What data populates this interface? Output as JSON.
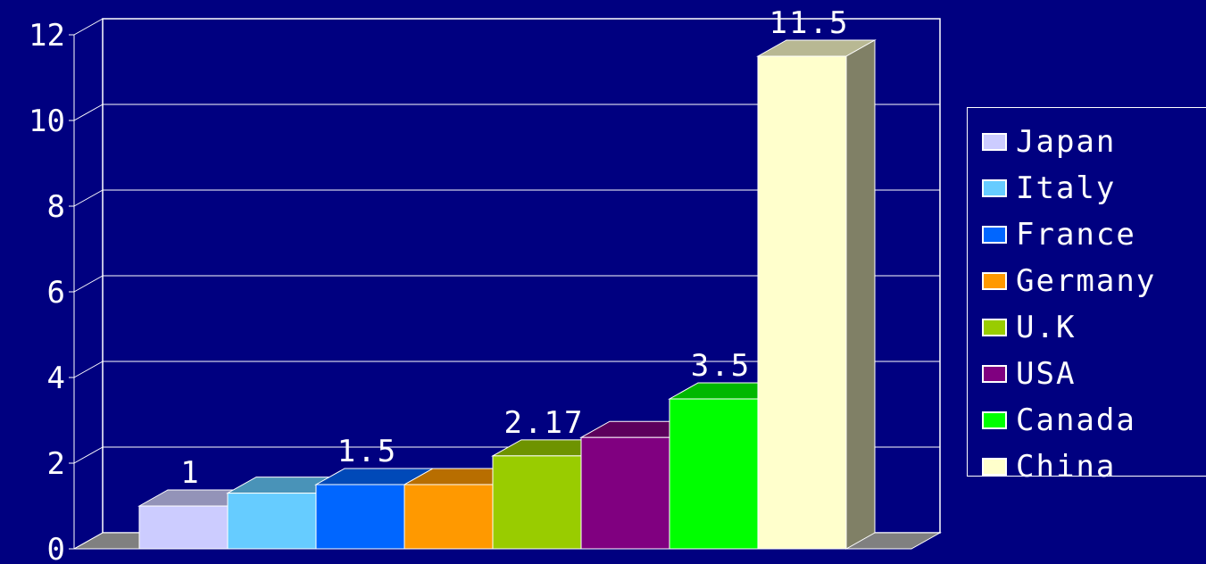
{
  "chart_data": {
    "type": "bar",
    "categories": [
      "Japan",
      "Italy",
      "France",
      "Germany",
      "U.K",
      "USA",
      "Canada",
      "China"
    ],
    "values": [
      1,
      1.3,
      1.5,
      1.5,
      2.17,
      2.6,
      3.5,
      11.5
    ],
    "data_labels": [
      "1",
      "",
      "1.5",
      "",
      "2.17",
      "",
      "3.5",
      "11.5"
    ],
    "colors": [
      "#ccccff",
      "#66ccff",
      "#0066ff",
      "#ff9900",
      "#99cc00",
      "#800080",
      "#00ff00",
      "#ffffcc"
    ],
    "ylim": [
      0,
      12
    ],
    "yticks": [
      "0",
      "2",
      "4",
      "6",
      "8",
      "10",
      "12"
    ],
    "legend_position": "right",
    "grid": true,
    "style": "3d",
    "title": "",
    "xlabel": "",
    "ylabel": ""
  }
}
